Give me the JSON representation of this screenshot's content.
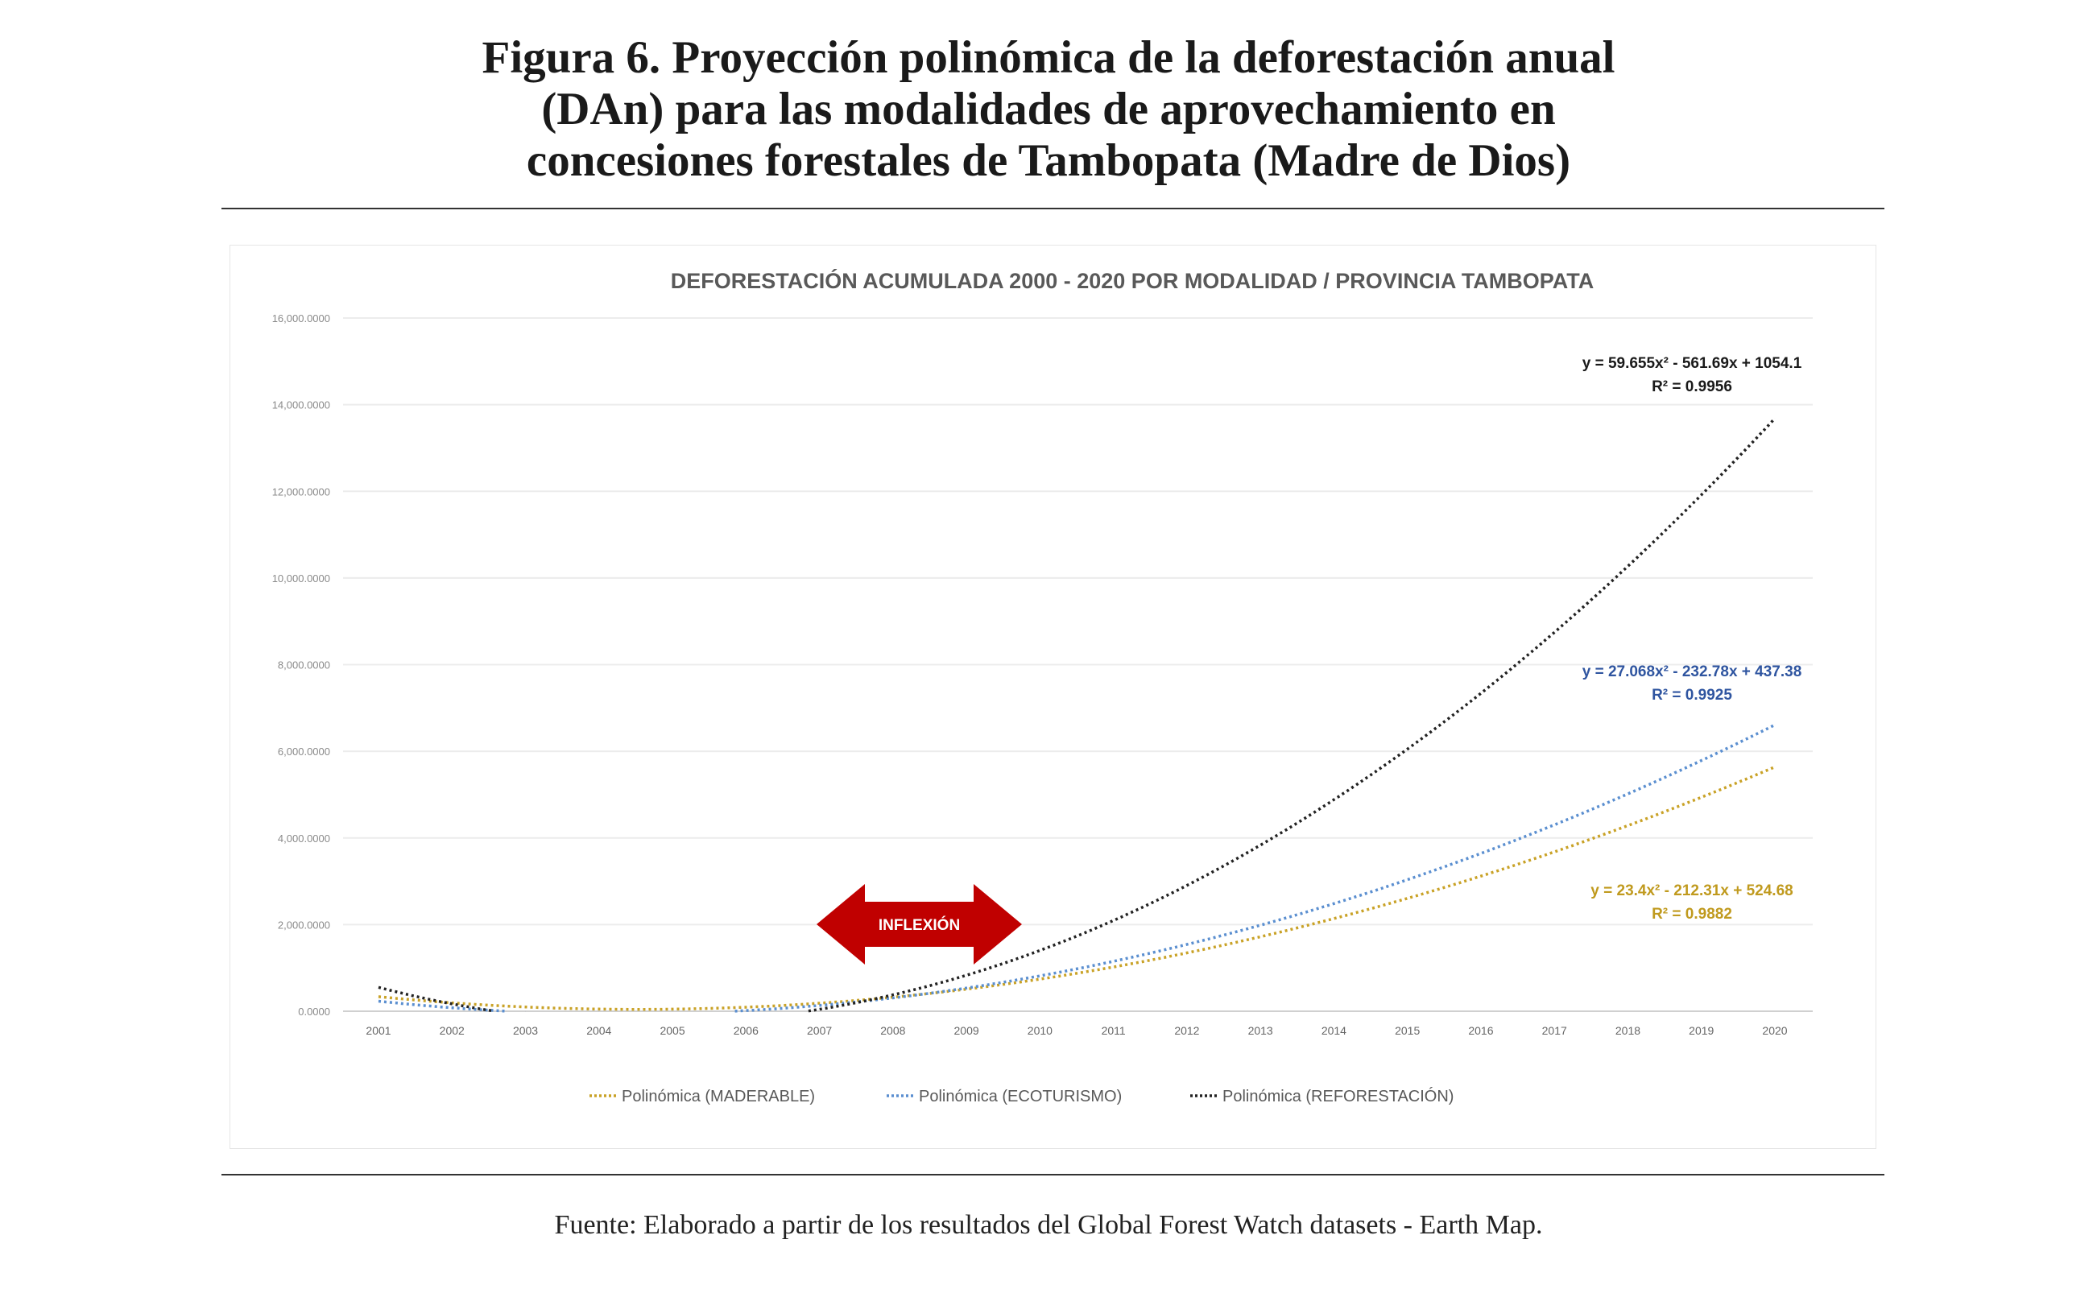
{
  "figure": {
    "title_lines": [
      "Figura 6. Proyección polinómica de la deforestación anual",
      "(DAn) para las modalidades de aprovechamiento en",
      "concesiones forestales de Tambopata (Madre de Dios)"
    ],
    "source": "Fuente: Elaborado a partir de los resultados del Global Forest Watch datasets - Earth Map."
  },
  "chart_data": {
    "type": "line",
    "title": "DEFORESTACIÓN ACUMULADA 2000 - 2020 POR MODALIDAD / PROVINCIA TAMBOPATA",
    "xlabel": "",
    "ylabel": "",
    "ylim": [
      0,
      16000
    ],
    "yticks": [
      "0.0000",
      "2,000.0000",
      "4,000.0000",
      "6,000.0000",
      "8,000.0000",
      "10,000.0000",
      "12,000.0000",
      "14,000.0000",
      "16,000.0000"
    ],
    "ytick_values": [
      0,
      2000,
      4000,
      6000,
      8000,
      10000,
      12000,
      14000,
      16000
    ],
    "categories": [
      "2001",
      "2002",
      "2003",
      "2004",
      "2005",
      "2006",
      "2007",
      "2008",
      "2009",
      "2010",
      "2011",
      "2012",
      "2013",
      "2014",
      "2015",
      "2016",
      "2017",
      "2018",
      "2019",
      "2020"
    ],
    "grid": true,
    "legend_position": "bottom",
    "series": [
      {
        "name": "Polinómica (MADERABLE)",
        "color": "#c9a227",
        "label_color": "#c09a1e",
        "coefficients": [
          23.4,
          -212.31,
          524.68
        ],
        "equation": "y = 23.4x² - 212.31x + 524.68",
        "r2": "R² = 0.9882",
        "values": [
          335.8,
          193.7,
          98.4,
          49.8,
          48.1,
          93.2,
          185.1,
          323.8,
          509.3,
          741.6,
          1020.7,
          1346.6,
          1719.3,
          2138.7,
          2605.0,
          3118.1,
          3678.0,
          4284.7,
          4938.2,
          5638.5
        ]
      },
      {
        "name": "Polinómica (ECOTURISMO)",
        "color": "#5b8fd0",
        "label_color": "#2f55a0",
        "coefficients": [
          27.068,
          -232.78,
          437.38
        ],
        "equation": "y = 27.068x² - 232.78x + 437.38",
        "r2": "R² = 0.9925",
        "values": [
          231.7,
          80.1,
          0,
          0,
          0,
          15.2,
          134.3,
          307.5,
          534.9,
          816.4,
          1152.0,
          1541.8,
          1985.7,
          2483.8,
          3036.0,
          3642.3,
          4302.8,
          5017.4,
          5786.1,
          6609.2
        ]
      },
      {
        "name": "Polinómica (REFORESTACIÓN)",
        "color": "#222222",
        "label_color": "#1a1a1a",
        "coefficients": [
          59.655,
          -561.69,
          1054.1
        ],
        "equation": "y = 59.655x² - 561.69x + 1054.1",
        "r2": "R² = 0.9956",
        "values": [
          552.1,
          169.3,
          0,
          0,
          0,
          0,
          45.4,
          378.5,
          830.9,
          1402.7,
          2093.8,
          2904.1,
          3833.8,
          4882.8,
          6051.1,
          7338.7,
          8745.7,
          10271.9,
          11917.5,
          13682.1
        ]
      }
    ],
    "annotation": {
      "text": "INFLEXIÓN",
      "color": "#c00000"
    }
  }
}
